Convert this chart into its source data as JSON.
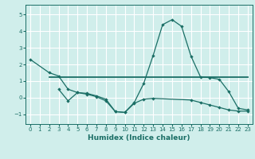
{
  "xlabel": "Humidex (Indice chaleur)",
  "bg_color": "#d0eeeb",
  "line_color": "#1a6e65",
  "grid_color": "#ffffff",
  "xlim": [
    -0.5,
    23.5
  ],
  "ylim": [
    -1.6,
    5.6
  ],
  "yticks": [
    -1,
    0,
    1,
    2,
    3,
    4,
    5
  ],
  "xticks": [
    0,
    1,
    2,
    3,
    4,
    5,
    6,
    7,
    8,
    9,
    10,
    11,
    12,
    13,
    14,
    15,
    16,
    17,
    18,
    19,
    20,
    21,
    22,
    23
  ],
  "line1_x": [
    0,
    2,
    3,
    4,
    5,
    6,
    7,
    8,
    9,
    10,
    11,
    12,
    13,
    14,
    15,
    16,
    17,
    18,
    19,
    20,
    21,
    22,
    23
  ],
  "line1_y": [
    2.3,
    1.5,
    1.3,
    0.5,
    0.3,
    0.25,
    0.1,
    -0.1,
    -0.85,
    -0.9,
    -0.3,
    0.85,
    2.55,
    4.4,
    4.7,
    4.3,
    2.5,
    1.25,
    1.2,
    1.1,
    0.35,
    -0.65,
    -0.75
  ],
  "line2_x": [
    2,
    23
  ],
  "line2_y": [
    1.25,
    1.25
  ],
  "line3_x": [
    3,
    4,
    5,
    6,
    7,
    8,
    9,
    10,
    11,
    12,
    13,
    17,
    18,
    19,
    20,
    21,
    22,
    23
  ],
  "line3_y": [
    0.5,
    -0.2,
    0.3,
    0.2,
    0.05,
    -0.2,
    -0.85,
    -0.9,
    -0.35,
    -0.1,
    -0.05,
    -0.15,
    -0.3,
    -0.45,
    -0.6,
    -0.75,
    -0.82,
    -0.82
  ]
}
